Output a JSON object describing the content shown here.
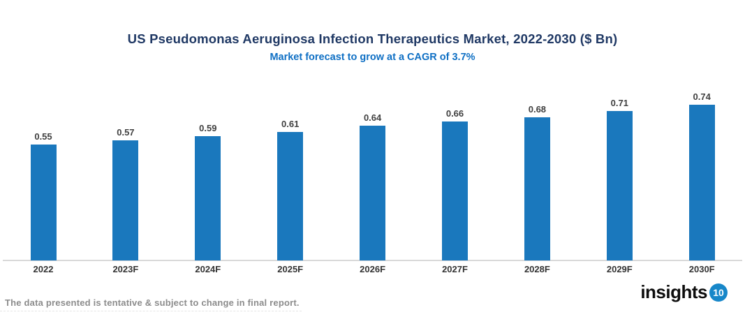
{
  "header": {
    "title": "US Pseudomonas Aeruginosa Infection Therapeutics Market, 2022-2030 ($ Bn)",
    "subtitle": "Market forecast to grow at a CAGR of 3.7%"
  },
  "chart_data": {
    "type": "bar",
    "title": "US Pseudomonas Aeruginosa Infection Therapeutics Market, 2022-2030 ($ Bn)",
    "subtitle": "Market forecast to grow at a CAGR of 3.7%",
    "categories": [
      "2022",
      "2023F",
      "2024F",
      "2025F",
      "2026F",
      "2027F",
      "2028F",
      "2029F",
      "2030F"
    ],
    "values": [
      0.55,
      0.57,
      0.59,
      0.61,
      0.64,
      0.66,
      0.68,
      0.71,
      0.74
    ],
    "value_labels": [
      "0.55",
      "0.57",
      "0.59",
      "0.61",
      "0.64",
      "0.66",
      "0.68",
      "0.71",
      "0.74"
    ],
    "xlabel": "",
    "ylabel": "",
    "ylim": [
      0,
      0.8
    ],
    "grid": false,
    "legend": false,
    "bar_color": "#1A78BD",
    "axis_line_color": "#D9D9D9"
  },
  "colors": {
    "title": "#1F3864",
    "subtitle": "#0E6FC4",
    "bar": "#1A78BD",
    "axis_line": "#D9D9D9",
    "value_label": "#3F3F3F",
    "tick_label": "#333333",
    "footer_note": "#8C8C8C",
    "logo_text": "#0D0D0D",
    "logo_badge": "#1787C9"
  },
  "footer": {
    "note": "The data presented is tentative & subject to change in final report.",
    "logo_text": "insights",
    "logo_number": "10"
  }
}
